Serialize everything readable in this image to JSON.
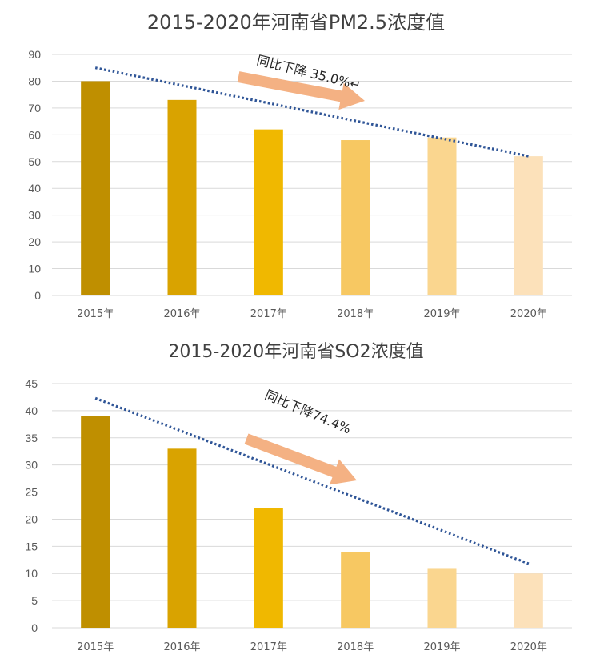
{
  "chart_data": [
    {
      "type": "bar",
      "title": "2015-2020年河南省PM2.5浓度值",
      "categories": [
        "2015年",
        "2016年",
        "2017年",
        "2018年",
        "2019年",
        "2020年"
      ],
      "values": [
        80,
        73,
        62,
        58,
        59,
        52
      ],
      "ylim": [
        0,
        90
      ],
      "yticks": [
        0,
        10,
        20,
        30,
        40,
        50,
        60,
        70,
        80,
        90
      ],
      "grid": true,
      "bar_colors": [
        "#BF8F00",
        "#D9A300",
        "#F0B800",
        "#F7C862",
        "#FAD68F",
        "#FCE1BA"
      ],
      "trendline": {
        "from": 85,
        "to": 52,
        "color": "#2F5597",
        "style": "dotted"
      },
      "annotation": "同比下降 35.0%↵",
      "arrow_color": "#F4B183"
    },
    {
      "type": "bar",
      "title": "2015-2020年河南省SO2浓度值",
      "categories": [
        "2015年",
        "2016年",
        "2017年",
        "2018年",
        "2019年",
        "2020年"
      ],
      "values": [
        39,
        33,
        22,
        14,
        11,
        10
      ],
      "ylim": [
        0,
        45
      ],
      "yticks": [
        0,
        5,
        10,
        15,
        20,
        25,
        30,
        35,
        40,
        45
      ],
      "grid": true,
      "bar_colors": [
        "#BF8F00",
        "#D9A300",
        "#F0B800",
        "#F7C862",
        "#FAD68F",
        "#FCE1BA"
      ],
      "trendline": {
        "from": 42.3,
        "to": 11.8,
        "color": "#2F5597",
        "style": "dotted"
      },
      "annotation": "同比下降74.4%",
      "arrow_color": "#F4B183"
    }
  ]
}
